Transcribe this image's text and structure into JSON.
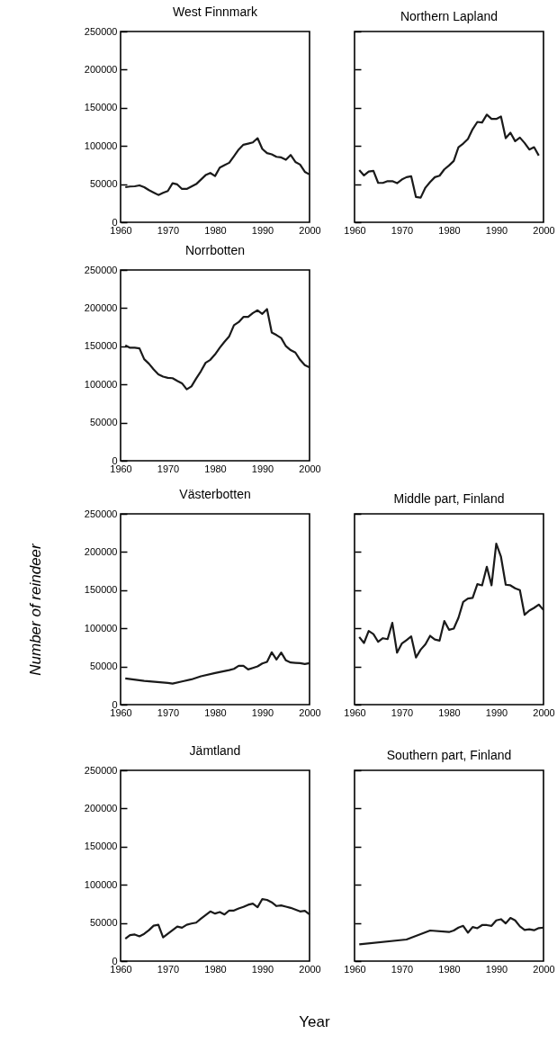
{
  "chart_data": [
    {
      "type": "line",
      "title": "West Finnmark",
      "x": [
        1961,
        1962,
        1963,
        1964,
        1965,
        1966,
        1967,
        1968,
        1969,
        1970,
        1971,
        1972,
        1973,
        1974,
        1975,
        1976,
        1977,
        1978,
        1979,
        1980,
        1981,
        1982,
        1983,
        1984,
        1985,
        1986,
        1987,
        1988,
        1989,
        1990,
        1991,
        1992,
        1993,
        1994,
        1995,
        1996,
        1997,
        1998,
        1999,
        2000
      ],
      "series": [
        {
          "color": "#1a1a1a",
          "values": [
            46000,
            46900,
            47200,
            48400,
            46000,
            42100,
            39000,
            35800,
            38600,
            41000,
            51200,
            49600,
            43700,
            43700,
            46900,
            50000,
            55900,
            61800,
            64600,
            60600,
            71700,
            74800,
            78000,
            86600,
            95300,
            101600,
            103100,
            104700,
            110200,
            96100,
            90600,
            89000,
            85800,
            85000,
            81900,
            88200,
            79100,
            75600,
            66100,
            62600
          ]
        }
      ],
      "xlim": [
        1960,
        2000
      ],
      "xticks": [
        1960,
        1970,
        1980,
        1990,
        2000
      ],
      "ylim": [
        0,
        250000
      ],
      "yticks": [
        0,
        50000,
        100000,
        150000,
        200000,
        250000
      ]
    },
    {
      "type": "line",
      "title": "Northern Lapland",
      "x": [
        1961,
        1962,
        1963,
        1964,
        1965,
        1966,
        1967,
        1968,
        1969,
        1970,
        1971,
        1972,
        1973,
        1974,
        1975,
        1976,
        1977,
        1978,
        1979,
        1980,
        1981,
        1982,
        1983,
        1984,
        1985,
        1986,
        1987,
        1988,
        1989,
        1990,
        1991,
        1992,
        1993,
        1994,
        1995,
        1996,
        1997,
        1998,
        1999
      ],
      "series": [
        {
          "color": "#1a1a1a",
          "values": [
            68500,
            61400,
            66500,
            67300,
            51600,
            51600,
            53900,
            53900,
            51200,
            55900,
            59100,
            60200,
            33100,
            32300,
            45300,
            52800,
            59100,
            61000,
            69300,
            74400,
            80300,
            98400,
            103100,
            109100,
            122000,
            131500,
            130700,
            141000,
            135400,
            135400,
            138600,
            110200,
            117300,
            106300,
            111000,
            103900,
            95300,
            98400,
            87400
          ]
        }
      ],
      "xlim": [
        1960,
        2000
      ],
      "xticks": [
        1960,
        1970,
        1980,
        1990,
        2000
      ],
      "ylim": [
        0,
        250000
      ],
      "yticks": [
        {
          "value": 0,
          "label": null
        },
        {
          "value": 50000,
          "label": null
        },
        {
          "value": 100000,
          "label": null
        },
        {
          "value": 150000,
          "label": null
        },
        {
          "value": 200000,
          "label": null
        },
        {
          "value": 250000,
          "label": null
        }
      ],
      "tick_labels": "x"
    },
    {
      "type": "line",
      "title": "Norrbotten",
      "x": [
        1961,
        1962,
        1963,
        1964,
        1965,
        1966,
        1967,
        1968,
        1969,
        1970,
        1971,
        1972,
        1973,
        1974,
        1975,
        1976,
        1977,
        1978,
        1979,
        1980,
        1981,
        1982,
        1983,
        1984,
        1985,
        1986,
        1987,
        1988,
        1989,
        1990,
        1991,
        1992,
        1993,
        1994,
        1995,
        1996,
        1997,
        1998,
        1999,
        2000
      ],
      "series": [
        {
          "color": "#1a1a1a",
          "values": [
            151300,
            148100,
            148100,
            147300,
            133100,
            127200,
            119700,
            113300,
            110200,
            108600,
            108200,
            104700,
            101500,
            93600,
            97500,
            107800,
            117300,
            128400,
            132300,
            139400,
            148100,
            156000,
            163100,
            177700,
            181700,
            188500,
            188500,
            193600,
            197200,
            192400,
            198800,
            168000,
            164700,
            160800,
            150100,
            145000,
            141800,
            132300,
            125200,
            122400
          ]
        }
      ],
      "xlim": [
        1960,
        2000
      ],
      "xticks": [
        1960,
        1970,
        1980,
        1990,
        2000
      ],
      "ylim": [
        0,
        250000
      ],
      "yticks": [
        0,
        50000,
        100000,
        150000,
        200000,
        250000
      ]
    },
    {
      "type": "line",
      "title": "Västerbotten",
      "ylabel": "Number of reindeer",
      "x": [
        1961,
        1965,
        1970,
        1971,
        1973,
        1975,
        1977,
        1980,
        1983,
        1984,
        1985,
        1986,
        1987,
        1988,
        1989,
        1990,
        1991,
        1992,
        1993,
        1994,
        1995,
        1996,
        1997,
        1998,
        1999,
        2000
      ],
      "series": [
        {
          "color": "#1a1a1a",
          "values": [
            34300,
            31200,
            28400,
            27600,
            30400,
            33100,
            37100,
            41400,
            45300,
            46900,
            50900,
            50900,
            46100,
            48100,
            50100,
            54000,
            56000,
            68600,
            59100,
            68200,
            58000,
            55200,
            54800,
            54400,
            53200,
            54400
          ]
        }
      ],
      "xlim": [
        1960,
        2000
      ],
      "xticks": [
        1960,
        1970,
        1980,
        1990,
        2000
      ],
      "ylim": [
        0,
        250000
      ],
      "yticks": [
        0,
        50000,
        100000,
        150000,
        200000,
        250000
      ]
    },
    {
      "type": "line",
      "title": "Middle part, Finland",
      "x": [
        1961,
        1962,
        1963,
        1964,
        1965,
        1966,
        1967,
        1968,
        1969,
        1970,
        1971,
        1972,
        1973,
        1974,
        1975,
        1976,
        1977,
        1978,
        1979,
        1980,
        1981,
        1982,
        1983,
        1984,
        1985,
        1986,
        1987,
        1988,
        1989,
        1990,
        1991,
        1992,
        1993,
        1994,
        1995,
        1996,
        1997,
        1998,
        1999,
        2000
      ],
      "series": [
        {
          "color": "#1a1a1a",
          "values": [
            88600,
            80800,
            96500,
            92500,
            82300,
            87000,
            85800,
            107100,
            68100,
            79900,
            84600,
            89400,
            61800,
            72100,
            79100,
            90200,
            85400,
            83900,
            109500,
            98100,
            99600,
            113800,
            134600,
            139000,
            139800,
            157900,
            156300,
            180700,
            156300,
            211000,
            193700,
            157100,
            156300,
            152400,
            150000,
            117700,
            123200,
            126800,
            131100,
            124000
          ]
        }
      ],
      "xlim": [
        1960,
        2000
      ],
      "xticks": [
        1960,
        1970,
        1980,
        1990,
        2000
      ],
      "ylim": [
        0,
        250000
      ],
      "yticks": [
        {
          "value": 0,
          "label": null
        },
        {
          "value": 50000,
          "label": null
        },
        {
          "value": 100000,
          "label": null
        },
        {
          "value": 150000,
          "label": null
        },
        {
          "value": 200000,
          "label": null
        },
        {
          "value": 250000,
          "label": null
        }
      ],
      "tick_labels": "x"
    },
    {
      "type": "line",
      "title": "Jämtland",
      "xlabel": "Year",
      "x": [
        1961,
        1962,
        1963,
        1964,
        1965,
        1966,
        1967,
        1968,
        1969,
        1970,
        1971,
        1972,
        1973,
        1974,
        1975,
        1976,
        1977,
        1978,
        1979,
        1980,
        1981,
        1982,
        1983,
        1984,
        1985,
        1986,
        1987,
        1988,
        1989,
        1990,
        1991,
        1992,
        1993,
        1994,
        1995,
        1996,
        1997,
        1998,
        1999,
        2000
      ],
      "series": [
        {
          "color": "#1a1a1a",
          "values": [
            29400,
            34100,
            34900,
            32500,
            35700,
            40500,
            46400,
            47600,
            31000,
            35700,
            40500,
            45200,
            43700,
            47600,
            49200,
            50400,
            55600,
            60300,
            65100,
            62300,
            64300,
            61100,
            66300,
            66300,
            69000,
            71000,
            73800,
            75400,
            70600,
            81300,
            80200,
            77000,
            72200,
            73000,
            71400,
            69800,
            67500,
            65100,
            65900,
            61100
          ]
        }
      ],
      "xlim": [
        1960,
        2000
      ],
      "xticks": [
        1960,
        1970,
        1980,
        1990,
        2000
      ],
      "ylim": [
        0,
        250000
      ],
      "yticks": [
        0,
        50000,
        100000,
        150000,
        200000,
        250000
      ]
    },
    {
      "type": "line",
      "title": "Southern part, Finland",
      "x": [
        1961,
        1971,
        1976,
        1980,
        1981,
        1982,
        1983,
        1984,
        1985,
        1986,
        1987,
        1988,
        1989,
        1990,
        1991,
        1992,
        1993,
        1994,
        1995,
        1996,
        1997,
        1998,
        1999,
        2000
      ],
      "series": [
        {
          "color": "#1a1a1a",
          "values": [
            21900,
            28300,
            40100,
            38100,
            40100,
            43900,
            46200,
            37200,
            44700,
            43100,
            47200,
            47200,
            46200,
            53400,
            54900,
            49400,
            56500,
            53400,
            45500,
            40900,
            41700,
            40500,
            43300,
            43900
          ]
        }
      ],
      "xlim": [
        1960,
        2000
      ],
      "xticks": [
        1960,
        1970,
        1980,
        1990,
        2000
      ],
      "ylim": [
        0,
        250000
      ],
      "yticks": [
        {
          "value": 0,
          "label": null
        },
        {
          "value": 50000,
          "label": null
        },
        {
          "value": 100000,
          "label": null
        },
        {
          "value": 150000,
          "label": null
        },
        {
          "value": 200000,
          "label": null
        },
        {
          "value": 250000,
          "label": null
        }
      ],
      "tick_labels": "x"
    }
  ]
}
